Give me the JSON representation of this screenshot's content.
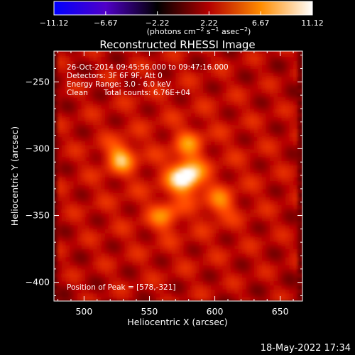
{
  "chart_data": {
    "type": "heatmap",
    "title": "Reconstructed RHESSI Image",
    "xlabel": "Heliocentric X (arcsec)",
    "ylabel": "Heliocentric Y (arcsec)",
    "xlim": [
      477,
      667
    ],
    "ylim": [
      -414,
      -227
    ],
    "x_ticks": [
      500,
      550,
      600,
      650
    ],
    "y_ticks": [
      -250,
      -300,
      -350,
      -400
    ],
    "x_tick_labels": [
      "500",
      "550",
      "600",
      "650"
    ],
    "y_tick_labels": [
      "−250",
      "−300",
      "−350",
      "−400"
    ],
    "colorbar": {
      "range": [
        -11.12,
        11.12
      ],
      "ticks": [
        -11.12,
        -6.67,
        -2.22,
        2.22,
        6.67,
        11.12
      ],
      "tick_labels": [
        "−11.12",
        "−6.67",
        "−2.22",
        "2.22",
        "6.67",
        "11.12"
      ],
      "unit_prefix": "(photons cm",
      "unit_exp1": "−2",
      "unit_mid": " s",
      "unit_exp2": "−1",
      "unit_mid2": " asec",
      "unit_exp3": "−2",
      "unit_suffix": ")",
      "colormap": [
        "#0000ff",
        "#5000c8",
        "#000000",
        "#b40000",
        "#ff8c00",
        "#ffffff"
      ]
    },
    "sources": [
      {
        "x": 578,
        "y": -321,
        "peak": 11.12
      },
      {
        "x": 528,
        "y": -306,
        "peak": 8.3
      },
      {
        "x": 562,
        "y": -350,
        "peak": 7.0
      },
      {
        "x": 604,
        "y": -341,
        "peak": 6.8
      },
      {
        "x": 580,
        "y": -296,
        "peak": 6.5
      }
    ],
    "background_level": 3.5,
    "annotations": [
      "26-Oct-2014 09:45:56.000 to 09:47:16.000",
      "Detectors: 3F 6F 9F, Att 0",
      "Energy Range: 3.0 - 6.0 keV",
      "Clean",
      "Total counts: 6.76E+04"
    ],
    "peak_text": "Position of Peak = [578,-321]",
    "timestamp": "18-May-2022 17:34"
  }
}
